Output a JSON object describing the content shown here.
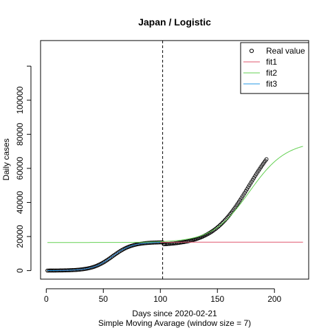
{
  "chart_data": {
    "type": "line",
    "title": "Japan / Logistic",
    "xlabel": "Days since 2020-02-21",
    "subtitle": "Simple Moving Avarage (window size = 7)",
    "ylabel": "Daily cases",
    "xlim": [
      -5,
      230
    ],
    "ylim": [
      -5000,
      135000
    ],
    "x_ticks": [
      0,
      50,
      100,
      150,
      200
    ],
    "x_tick_labels": [
      "0",
      "50",
      "100",
      "150",
      "200"
    ],
    "y_ticks": [
      0,
      20000,
      40000,
      60000,
      80000,
      100000,
      120000
    ],
    "y_tick_labels": [
      "0",
      "20000",
      "40000",
      "60000",
      "80000",
      "100000",
      ""
    ],
    "vline": {
      "x": 102,
      "style": "dashed",
      "color": "#000000"
    },
    "grid": false,
    "legend_position": "top-right",
    "legend": [
      {
        "label": "Real value",
        "kind": "circle",
        "color": "#000000"
      },
      {
        "label": "fit1",
        "kind": "line",
        "color": "#DF536B"
      },
      {
        "label": "fit2",
        "kind": "line",
        "color": "#61D04F"
      },
      {
        "label": "fit3",
        "kind": "line",
        "color": "#2297E6"
      }
    ],
    "series": [
      {
        "name": "Real value",
        "kind": "points",
        "color": "#000000",
        "x_range": [
          1,
          193
        ],
        "segments": [
          {
            "type": "logistic",
            "x_from": 1,
            "x_to": 102,
            "L": 16700,
            "x0": 58,
            "k": 0.115,
            "base": 0
          },
          {
            "type": "logistic",
            "x_from": 102,
            "x_to": 193,
            "L": 70500,
            "x0": 178,
            "k": 0.062,
            "base": 14800
          }
        ]
      },
      {
        "name": "fit1",
        "kind": "line",
        "color": "#DF536B",
        "x_range": [
          1,
          225
        ],
        "segments": [
          {
            "type": "logistic",
            "x_from": 1,
            "x_to": 225,
            "L": 16700,
            "x0": 58,
            "k": 0.115,
            "base": 0
          }
        ]
      },
      {
        "name": "fit2",
        "kind": "line",
        "color": "#61D04F",
        "x_range": [
          1,
          225
        ],
        "segments": [
          {
            "type": "logistic",
            "x_from": 1,
            "x_to": 225,
            "L": 59500,
            "x0": 178,
            "k": 0.062,
            "base": 16500
          }
        ]
      },
      {
        "name": "fit3",
        "kind": "line",
        "color": "#2297E6",
        "x_range": [
          1,
          100
        ],
        "segments": [
          {
            "type": "logistic",
            "x_from": 1,
            "x_to": 100,
            "L": 16700,
            "x0": 58,
            "k": 0.115,
            "base": 0
          }
        ]
      }
    ]
  }
}
